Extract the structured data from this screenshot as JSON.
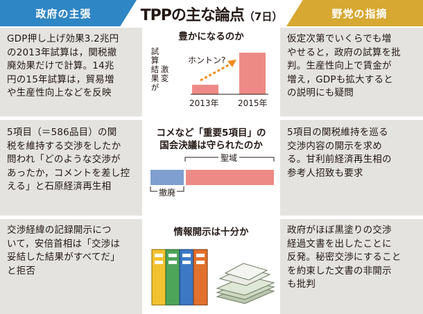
{
  "header": {
    "left_tag": "政府の主張",
    "title": "TPPの主な論点",
    "date": "（7日）",
    "right_tag": "野党の指摘"
  },
  "rows": [
    {
      "left_lines": [
        "GDP押し上げ効果3.2兆円",
        "の2013年試算は，関税撤",
        "廃効果だけで計算。14兆",
        "円の15年試算は，貿易増",
        "や生産性向上などを反映"
      ],
      "panel_title": "豊かになるのか",
      "right_lines": [
        "仮定次第でいくらでも増",
        "やせると，政府の試算を批",
        "判。生産性向上で賃金が",
        "増え，GDPも拡大すると",
        "の説明にも疑問"
      ]
    },
    {
      "left_lines": [
        "5項目（＝586品目）の関",
        "税を維持する交渉をしたか",
        "問われ「どのような交渉が",
        "あったか，コメントを差し控",
        "える」と石原経済再生相"
      ],
      "panel_title_lines": [
        "コメなど「重要5項目」の",
        "国会決議は守られたのか"
      ],
      "right_lines": [
        "5項目の関税維持を巡る",
        "交渉内容の開示を求め",
        "る。甘利前経済再生相の",
        "参考人招致も要求"
      ]
    },
    {
      "left_lines": [
        "交渉経緯の記録開示につ",
        "いて，安倍首相は「交渉は",
        "妥結した結果がすべてだ」",
        "と拒否"
      ],
      "panel_title": "情報開示は十分か",
      "right_lines": [
        "政府がほぼ黒塗りの交渉",
        "経過文書を出したことに",
        "反発。秘密交渉にすること",
        "を約束した文書の非開示",
        "も批判"
      ]
    }
  ],
  "chart_data": {
    "type": "bar",
    "categories": [
      "2013年",
      "2015年"
    ],
    "values": [
      3.2,
      14
    ],
    "annotation": "ホントン?",
    "vertical_label": [
      "試算",
      "結果が",
      "激変"
    ]
  },
  "tariff_bar": {
    "removed_label": "撤廃",
    "sanctuary_label": "聖域",
    "removed_color": "#7f9fd0",
    "sanctuary_color": "#ee8a86"
  },
  "colors": {
    "gov_blue": "#2f86c4",
    "opp_gold": "#d7a832",
    "bar_pink": "#ee8a86",
    "arrow_orange": "#f08c1e"
  }
}
